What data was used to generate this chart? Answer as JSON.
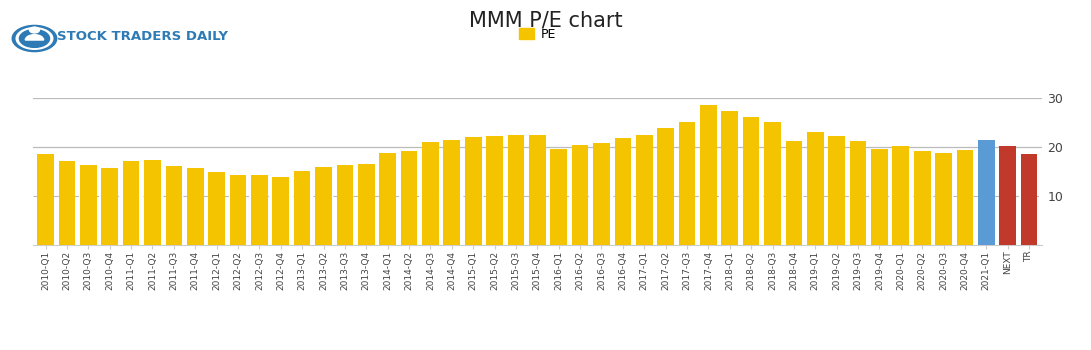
{
  "title": "MMM P/E chart",
  "legend_label": "PE",
  "bar_color": "#F5C400",
  "blue_color": "#5B9BD5",
  "red_color": "#C0392B",
  "gridline_solid_color": "#BBBBBB",
  "gridline_dash_color": "#BBBBBB",
  "background_color": "#FFFFFF",
  "ylim": [
    0,
    30
  ],
  "yticks": [
    0,
    10,
    20,
    30
  ],
  "categories": [
    "2010-Q1",
    "2010-Q2",
    "2010-Q3",
    "2010-Q4",
    "2011-Q1",
    "2011-Q2",
    "2011-Q3",
    "2011-Q4",
    "2012-Q1",
    "2012-Q2",
    "2012-Q3",
    "2012-Q4",
    "2013-Q1",
    "2013-Q2",
    "2013-Q3",
    "2013-Q4",
    "2014-Q1",
    "2014-Q2",
    "2014-Q3",
    "2014-Q4",
    "2015-Q1",
    "2015-Q2",
    "2015-Q3",
    "2015-Q4",
    "2016-Q1",
    "2016-Q2",
    "2016-Q3",
    "2016-Q4",
    "2017-Q1",
    "2017-Q2",
    "2017-Q3",
    "2017-Q4",
    "2018-Q1",
    "2018-Q2",
    "2018-Q3",
    "2018-Q4",
    "2019-Q1",
    "2019-Q2",
    "2019-Q3",
    "2019-Q4",
    "2020-Q1",
    "2020-Q2",
    "2020-Q3",
    "2020-Q4",
    "2021-Q1",
    "NEXT",
    "TR"
  ],
  "values": [
    18.5,
    17.2,
    16.3,
    15.8,
    17.2,
    17.3,
    16.2,
    15.8,
    14.8,
    14.3,
    14.3,
    13.8,
    15.2,
    16.0,
    16.3,
    16.5,
    18.8,
    19.2,
    21.0,
    21.5,
    22.0,
    22.2,
    22.5,
    22.5,
    19.5,
    20.5,
    20.8,
    21.8,
    22.5,
    23.8,
    25.2,
    28.5,
    27.3,
    26.2,
    25.0,
    21.2,
    23.0,
    22.3,
    21.2,
    19.5,
    20.3,
    19.2,
    18.8,
    19.3,
    21.5,
    20.3,
    18.5
  ],
  "bar_types": [
    "gold",
    "gold",
    "gold",
    "gold",
    "gold",
    "gold",
    "gold",
    "gold",
    "gold",
    "gold",
    "gold",
    "gold",
    "gold",
    "gold",
    "gold",
    "gold",
    "gold",
    "gold",
    "gold",
    "gold",
    "gold",
    "gold",
    "gold",
    "gold",
    "gold",
    "gold",
    "gold",
    "gold",
    "gold",
    "gold",
    "gold",
    "gold",
    "gold",
    "gold",
    "gold",
    "gold",
    "gold",
    "gold",
    "gold",
    "gold",
    "gold",
    "gold",
    "gold",
    "gold",
    "blue",
    "red",
    "red"
  ],
  "title_fontsize": 15,
  "tick_fontsize": 6.5,
  "ytick_fontsize": 9,
  "legend_fontsize": 9,
  "header_text": "STOCK TRADERS DAILY",
  "header_fontsize": 9.5
}
